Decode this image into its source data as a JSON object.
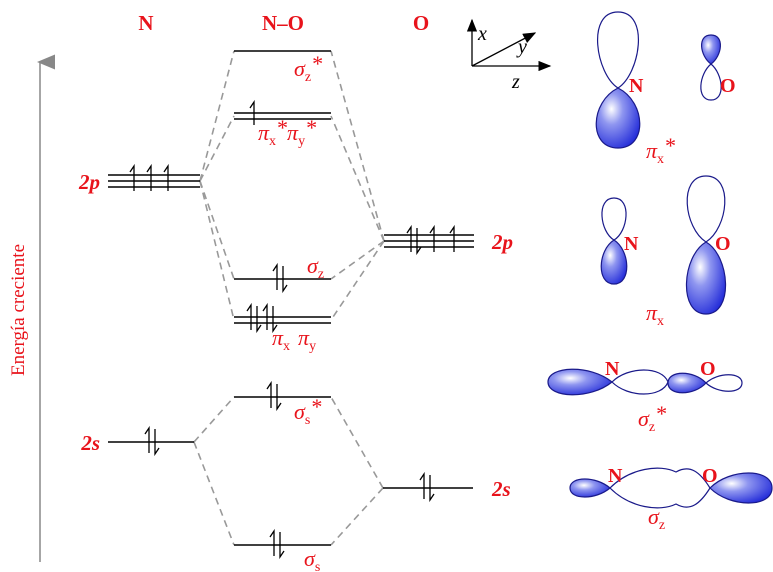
{
  "headers": {
    "n": "N",
    "no": "N–O",
    "o": "O"
  },
  "energy_label": "Energía creciente",
  "axes": {
    "x": "x",
    "y": "y",
    "z": "z"
  },
  "levels": {
    "n_2p": "2p",
    "n_2s": "2s",
    "o_2p": "2p",
    "o_2s": "2s"
  },
  "mo_labels": {
    "sigma_z_star": {
      "base": "σ",
      "sub": "z",
      "sup": "*"
    },
    "pi_x_star": {
      "base": "π",
      "sub": "x",
      "sup": "*"
    },
    "pi_y_star": {
      "base": "π",
      "sub": "y",
      "sup": "*"
    },
    "sigma_z": {
      "base": "σ",
      "sub": "z"
    },
    "pi_x": {
      "base": "π",
      "sub": "x"
    },
    "pi_y": {
      "base": "π",
      "sub": "y"
    },
    "sigma_s_star": {
      "base": "σ",
      "sub": "s",
      "sup": "*"
    },
    "sigma_s": {
      "base": "σ",
      "sub": "s"
    }
  },
  "orbital_pics": {
    "pi_x_star": {
      "atom1": "N",
      "atom2": "O",
      "label": {
        "base": "π",
        "sub": "x",
        "sup": "*"
      }
    },
    "pi_x": {
      "atom1": "N",
      "atom2": "O",
      "label": {
        "base": "π",
        "sub": "x"
      }
    },
    "sigma_z_star": {
      "atom1": "N",
      "atom2": "O",
      "label": {
        "base": "σ",
        "sub": "z",
        "sup": "*"
      }
    },
    "sigma_z": {
      "atom1": "N",
      "atom2": "O",
      "label": {
        "base": "σ",
        "sub": "z"
      }
    }
  },
  "colors": {
    "label_red": "#e8131b",
    "lobe_blue": "#2b35e0",
    "dash_gray": "#999999"
  }
}
